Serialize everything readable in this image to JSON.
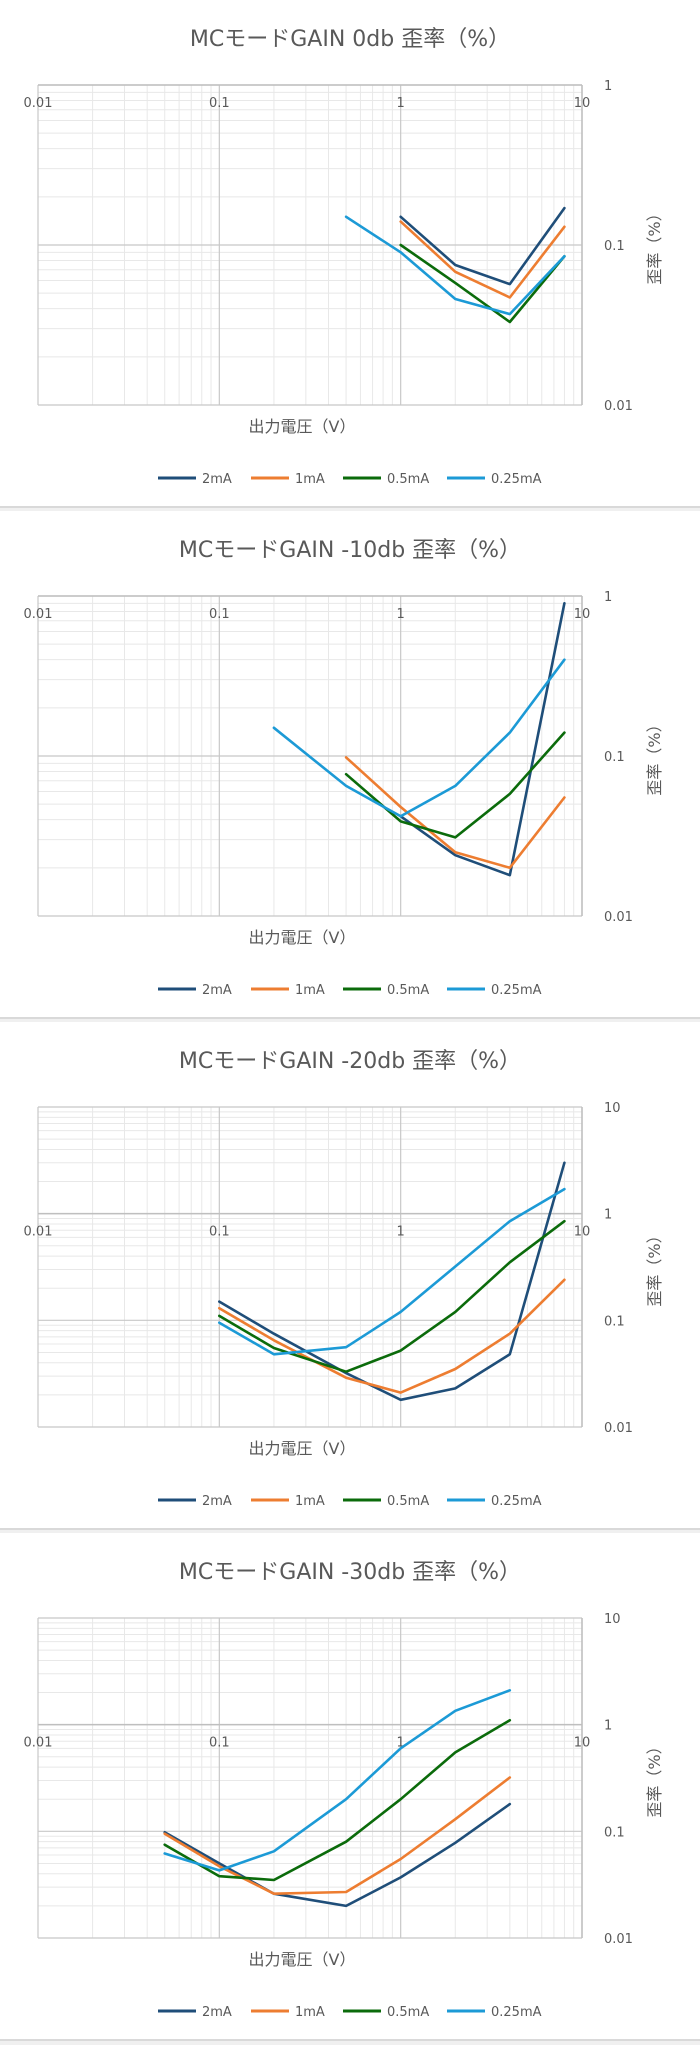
{
  "colors": {
    "2mA": "#1f4e79",
    "1mA": "#ed7d31",
    "0.5mA": "#0b6b0b",
    "0.25mA": "#1c9ad6",
    "grid": "#d9d9d9",
    "axis": "#bfbfbf",
    "text": "#595959"
  },
  "chart_data": [
    {
      "type": "line",
      "title": "MCモードGAIN 0db 歪率（%）",
      "xlabel": "出力電圧（V）",
      "ylabel": "歪率（%）",
      "xscale": "log",
      "yscale": "log",
      "xlim": [
        0.01,
        10
      ],
      "ylim": [
        0.01,
        1
      ],
      "xticks": [
        "0.01",
        "0.1",
        "1",
        "10"
      ],
      "yticks": [
        "0.01",
        "0.1",
        "1"
      ],
      "legend_position": "bottom",
      "series": [
        {
          "name": "2mA",
          "color": "#1f4e79",
          "points": [
            [
              1,
              0.15
            ],
            [
              2,
              0.075
            ],
            [
              4,
              0.057
            ],
            [
              8,
              0.17
            ]
          ]
        },
        {
          "name": "1mA",
          "color": "#ed7d31",
          "points": [
            [
              1,
              0.14
            ],
            [
              2,
              0.068
            ],
            [
              4,
              0.047
            ],
            [
              8,
              0.13
            ]
          ]
        },
        {
          "name": "0.5mA",
          "color": "#0b6b0b",
          "points": [
            [
              1,
              0.1
            ],
            [
              2,
              0.058
            ],
            [
              4,
              0.033
            ],
            [
              8,
              0.085
            ]
          ]
        },
        {
          "name": "0.25mA",
          "color": "#1c9ad6",
          "points": [
            [
              0.5,
              0.15
            ],
            [
              1,
              0.09
            ],
            [
              2,
              0.046
            ],
            [
              4,
              0.037
            ],
            [
              8,
              0.085
            ]
          ]
        }
      ]
    },
    {
      "type": "line",
      "title": "MCモードGAIN -10db 歪率（%）",
      "xlabel": "出力電圧（V）",
      "ylabel": "歪率（%）",
      "xscale": "log",
      "yscale": "log",
      "xlim": [
        0.01,
        10
      ],
      "ylim": [
        0.01,
        1
      ],
      "xticks": [
        "0.01",
        "0.1",
        "1",
        "10"
      ],
      "yticks": [
        "0.01",
        "0.1",
        "1"
      ],
      "legend_position": "bottom",
      "series": [
        {
          "name": "2mA",
          "color": "#1f4e79",
          "points": [
            [
              1,
              0.042
            ],
            [
              2,
              0.024
            ],
            [
              4,
              0.018
            ],
            [
              8,
              0.9
            ]
          ]
        },
        {
          "name": "1mA",
          "color": "#ed7d31",
          "points": [
            [
              0.5,
              0.098
            ],
            [
              1,
              0.048
            ],
            [
              2,
              0.025
            ],
            [
              4,
              0.02
            ],
            [
              8,
              0.055
            ]
          ]
        },
        {
          "name": "0.5mA",
          "color": "#0b6b0b",
          "points": [
            [
              0.5,
              0.077
            ],
            [
              1,
              0.039
            ],
            [
              2,
              0.031
            ],
            [
              4,
              0.058
            ],
            [
              8,
              0.14
            ]
          ]
        },
        {
          "name": "0.25mA",
          "color": "#1c9ad6",
          "points": [
            [
              0.2,
              0.15
            ],
            [
              0.5,
              0.065
            ],
            [
              1,
              0.042
            ],
            [
              2,
              0.065
            ],
            [
              4,
              0.14
            ],
            [
              8,
              0.4
            ]
          ]
        }
      ]
    },
    {
      "type": "line",
      "title": "MCモードGAIN -20db 歪率（%）",
      "xlabel": "出力電圧（V）",
      "ylabel": "歪率（%）",
      "xscale": "log",
      "yscale": "log",
      "xlim": [
        0.01,
        10
      ],
      "ylim": [
        0.01,
        10
      ],
      "xticks": [
        "0.01",
        "0.1",
        "1",
        "10"
      ],
      "yticks": [
        "0.01",
        "0.1",
        "1",
        "10"
      ],
      "legend_position": "bottom",
      "series": [
        {
          "name": "2mA",
          "color": "#1f4e79",
          "points": [
            [
              0.1,
              0.15
            ],
            [
              0.2,
              0.075
            ],
            [
              0.5,
              0.032
            ],
            [
              1,
              0.018
            ],
            [
              2,
              0.023
            ],
            [
              4,
              0.048
            ],
            [
              8,
              3.0
            ]
          ]
        },
        {
          "name": "1mA",
          "color": "#ed7d31",
          "points": [
            [
              0.1,
              0.13
            ],
            [
              0.2,
              0.065
            ],
            [
              0.5,
              0.029
            ],
            [
              1,
              0.021
            ],
            [
              2,
              0.035
            ],
            [
              4,
              0.075
            ],
            [
              8,
              0.24
            ]
          ]
        },
        {
          "name": "0.5mA",
          "color": "#0b6b0b",
          "points": [
            [
              0.1,
              0.11
            ],
            [
              0.2,
              0.055
            ],
            [
              0.5,
              0.033
            ],
            [
              1,
              0.052
            ],
            [
              2,
              0.12
            ],
            [
              4,
              0.35
            ],
            [
              8,
              0.85
            ]
          ]
        },
        {
          "name": "0.25mA",
          "color": "#1c9ad6",
          "points": [
            [
              0.1,
              0.095
            ],
            [
              0.2,
              0.048
            ],
            [
              0.5,
              0.056
            ],
            [
              1,
              0.12
            ],
            [
              2,
              0.32
            ],
            [
              4,
              0.85
            ],
            [
              8,
              1.7
            ]
          ]
        }
      ]
    },
    {
      "type": "line",
      "title": "MCモードGAIN -30db 歪率（%）",
      "xlabel": "出力電圧（V）",
      "ylabel": "歪率（%）",
      "xscale": "log",
      "yscale": "log",
      "xlim": [
        0.01,
        10
      ],
      "ylim": [
        0.01,
        10
      ],
      "xticks": [
        "0.01",
        "0.1",
        "1",
        "10"
      ],
      "yticks": [
        "0.01",
        "0.1",
        "1",
        "10"
      ],
      "legend_position": "bottom",
      "series": [
        {
          "name": "2mA",
          "color": "#1f4e79",
          "points": [
            [
              0.05,
              0.098
            ],
            [
              0.1,
              0.05
            ],
            [
              0.2,
              0.026
            ],
            [
              0.5,
              0.02
            ],
            [
              1,
              0.037
            ],
            [
              2,
              0.078
            ],
            [
              4,
              0.18
            ]
          ]
        },
        {
          "name": "1mA",
          "color": "#ed7d31",
          "points": [
            [
              0.05,
              0.095
            ],
            [
              0.1,
              0.047
            ],
            [
              0.2,
              0.026
            ],
            [
              0.5,
              0.027
            ],
            [
              1,
              0.055
            ],
            [
              2,
              0.13
            ],
            [
              4,
              0.32
            ]
          ]
        },
        {
          "name": "0.5mA",
          "color": "#0b6b0b",
          "points": [
            [
              0.05,
              0.075
            ],
            [
              0.1,
              0.038
            ],
            [
              0.2,
              0.035
            ],
            [
              0.5,
              0.08
            ],
            [
              1,
              0.2
            ],
            [
              2,
              0.55
            ],
            [
              4,
              1.1
            ]
          ]
        },
        {
          "name": "0.25mA",
          "color": "#1c9ad6",
          "points": [
            [
              0.05,
              0.062
            ],
            [
              0.1,
              0.043
            ],
            [
              0.2,
              0.065
            ],
            [
              0.5,
              0.2
            ],
            [
              1,
              0.6
            ],
            [
              2,
              1.35
            ],
            [
              4,
              2.1
            ]
          ]
        }
      ]
    }
  ]
}
